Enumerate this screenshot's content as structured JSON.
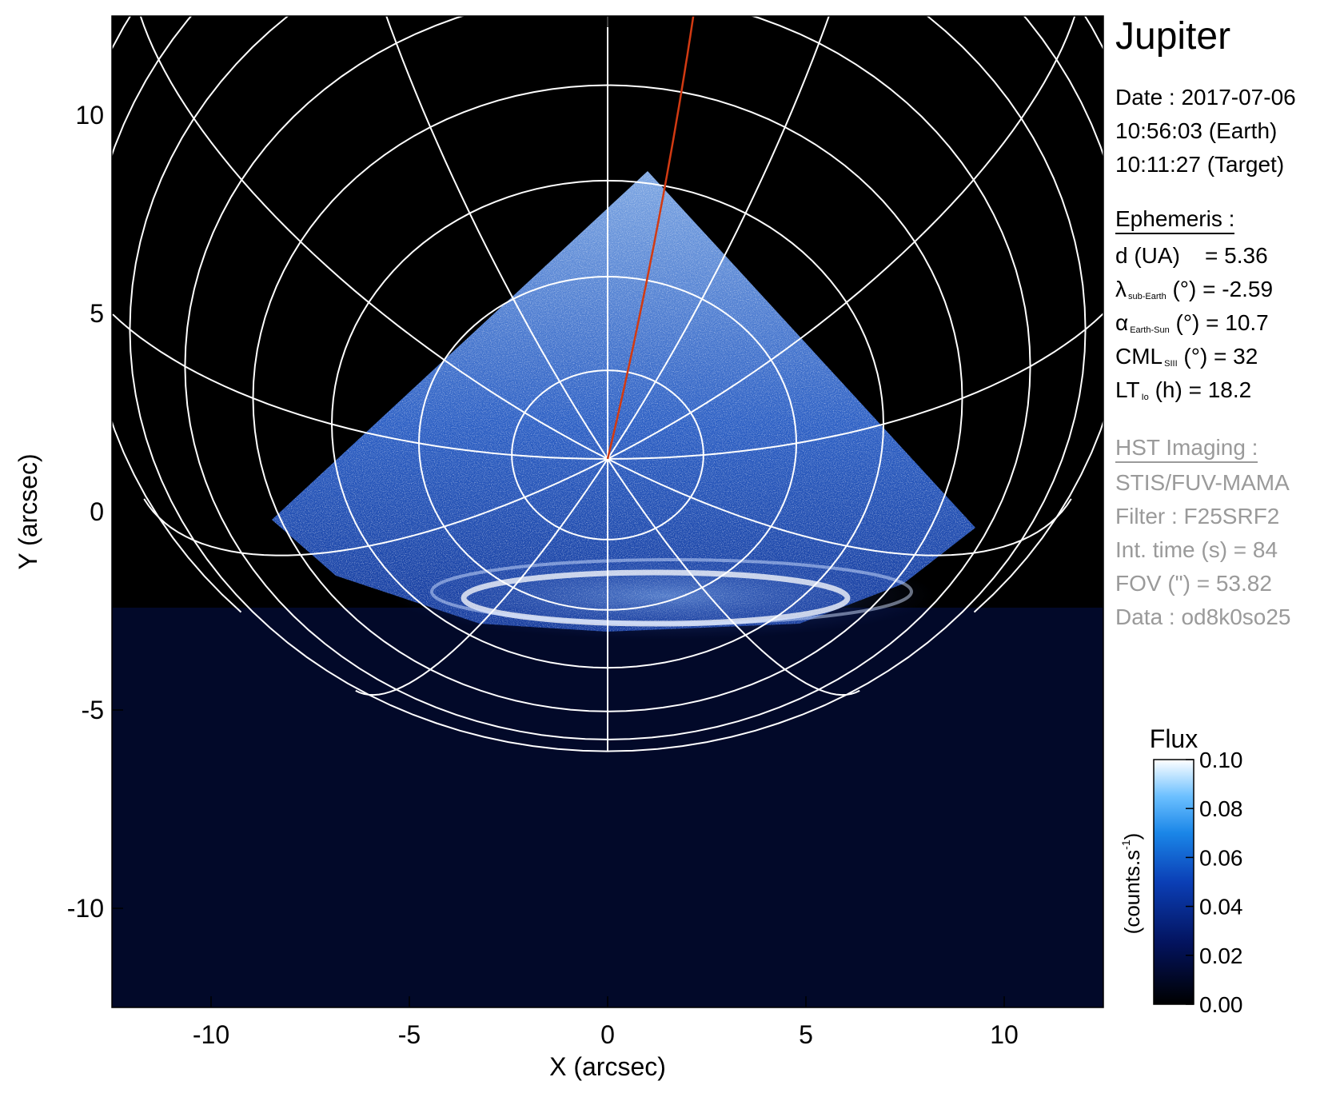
{
  "figure": {
    "x_axis_label": "X (arcsec)",
    "y_axis_label": "Y (arcsec)",
    "x_ticks": [
      "-10",
      "-5",
      "0",
      "5",
      "10"
    ],
    "y_ticks": [
      "10",
      "5",
      "0",
      "-5",
      "-10"
    ],
    "x_range": [
      -12.5,
      12.5
    ],
    "y_range": [
      -12.5,
      12.5
    ],
    "colors": {
      "background": "#000000",
      "grid": "#ffffff",
      "meridian_highlight": "#d23a12",
      "emission_low": "#0a1a66",
      "emission_high": "#ffffff"
    }
  },
  "info": {
    "planet": "Jupiter",
    "date_line": "Date : 2017-07-06",
    "earth_time": "10:56:03 (Earth)",
    "target_time": "10:11:27 (Target)",
    "ephemeris_heading": "Ephemeris :",
    "d_label": "d (UA)",
    "d_value": "= 5.36",
    "lambda_symbol": "λ",
    "lambda_sub": "sub-Earth",
    "lambda_rest": "(°) = -2.59",
    "alpha_symbol": "α",
    "alpha_sub": "Earth-Sun",
    "alpha_rest": "(°) = 10.7",
    "cml_symbol": "CML",
    "cml_sub": "SIII",
    "cml_rest": "(°) = 32",
    "lt_symbol": "LT",
    "lt_sub": "Io",
    "lt_rest": "(h) = 18.2",
    "hst_heading": "HST Imaging :",
    "instrument": "STIS/FUV-MAMA",
    "filter": "Filter : F25SRF2",
    "int_time": "Int. time (s) = 84",
    "fov": "FOV (\") = 53.82",
    "dataset": "Data : od8k0so25"
  },
  "colorbar": {
    "title": "Flux",
    "unit_label": "(counts.s-1)",
    "unit_main": "(counts.s",
    "unit_sup": "-1",
    "unit_close": ")",
    "ticks": [
      "0.10",
      "0.08",
      "0.06",
      "0.04",
      "0.02",
      "0.00"
    ],
    "range": [
      0.0,
      0.1
    ]
  }
}
